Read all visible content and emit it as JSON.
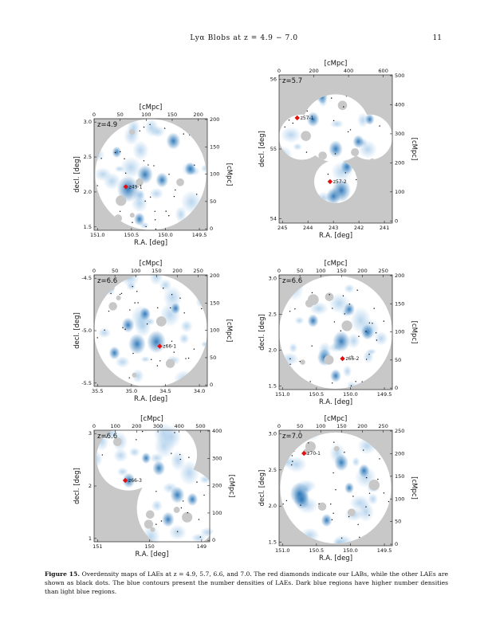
{
  "header": {
    "running_title": "Lyα Blobs at z = 4.9 − 7.0",
    "page_number": "11"
  },
  "panels": [
    {
      "z_label": "z=4.9",
      "top_axis_title": "[cMpc]",
      "top_ticks": [
        "0",
        "50",
        "100",
        "150",
        "200"
      ],
      "right_ticks": [
        "200",
        "150",
        "100",
        "50",
        "0"
      ],
      "right_axis_title": "[cMpc]",
      "left_axis_title": "decl. [deg]",
      "left_ticks": [
        "3.0",
        "2.5",
        "2.0",
        "1.5"
      ],
      "bottom_axis_title": "R.A. [deg]",
      "bottom_ticks": [
        "151.0",
        "150.5",
        "150.0",
        "149.5"
      ],
      "labs": [
        "z49-1"
      ]
    },
    {
      "z_label": "z=5.7",
      "top_axis_title": "[cMpc]",
      "top_ticks": [
        "0",
        "200",
        "400",
        "600"
      ],
      "right_ticks": [
        "500",
        "400",
        "300",
        "200",
        "100",
        "0"
      ],
      "right_axis_title": "[cMpc]",
      "left_axis_title": "decl. [deg]",
      "left_ticks": [
        "56",
        "55",
        "54"
      ],
      "bottom_axis_title": "R.A. [deg]",
      "bottom_ticks": [
        "245",
        "244",
        "243",
        "242",
        "241"
      ],
      "labs": [
        "z57-1",
        "z57-2"
      ]
    },
    {
      "z_label": "z=6.6",
      "top_axis_title": "[cMpc]",
      "top_ticks": [
        "0",
        "50",
        "100",
        "150",
        "200",
        "250"
      ],
      "right_ticks": [
        "200",
        "150",
        "100",
        "50",
        "0"
      ],
      "right_axis_title": "[cMpc]",
      "left_axis_title": "decl. [deg]",
      "left_ticks": [
        "-4.5",
        "-5.0",
        "-5.5"
      ],
      "bottom_axis_title": "R.A. [deg]",
      "bottom_ticks": [
        "35.5",
        "35.0",
        "34.5",
        "34.0"
      ],
      "labs": [
        "z66-1"
      ]
    },
    {
      "z_label": "z=6.6",
      "top_axis_title": "[cMpc]",
      "top_ticks": [
        "0",
        "50",
        "100",
        "150",
        "200",
        "250"
      ],
      "right_ticks": [
        "200",
        "150",
        "100",
        "50",
        "0"
      ],
      "right_axis_title": "[cMpc]",
      "left_axis_title": "decl. [deg]",
      "left_ticks": [
        "3.0",
        "2.5",
        "2.0",
        "1.5"
      ],
      "bottom_axis_title": "R.A. [deg]",
      "bottom_ticks": [
        "151.0",
        "150.5",
        "150.0",
        "149.5"
      ],
      "labs": [
        "z66-2"
      ]
    },
    {
      "z_label": "z=6.6",
      "top_axis_title": "[cMpc]",
      "top_ticks": [
        "0",
        "100",
        "200",
        "300",
        "400",
        "500"
      ],
      "right_ticks": [
        "400",
        "300",
        "200",
        "100",
        "0"
      ],
      "right_axis_title": "[cMpc]",
      "left_axis_title": "decl. [deg]",
      "left_ticks": [
        "3",
        "2",
        "1"
      ],
      "bottom_axis_title": "R.A. [deg]",
      "bottom_ticks": [
        "151",
        "150",
        "149"
      ],
      "labs": [
        "z66-3"
      ]
    },
    {
      "z_label": "z=7.0",
      "top_axis_title": "[cMpc]",
      "top_ticks": [
        "0",
        "50",
        "100",
        "150",
        "200",
        "250"
      ],
      "right_ticks": [
        "250",
        "200",
        "150",
        "100",
        "50",
        "0"
      ],
      "right_axis_title": "[cMpc]",
      "left_axis_title": "decl. [deg]",
      "left_ticks": [
        "3.0",
        "2.5",
        "2.0",
        "1.5"
      ],
      "bottom_axis_title": "R.A. [deg]",
      "bottom_ticks": [
        "151.0",
        "150.5",
        "150.0",
        "149.5"
      ],
      "labs": [
        "z70-1"
      ]
    }
  ],
  "caption": {
    "label": "Figure 15.",
    "text": "Overdensity maps of LAEs at z = 4.9, 5.7, 6.6, and 7.0. The red diamonds indicate our LABs, while the other LAEs are shown as black dots. The blue contours present the number densities of LAEs. Dark blue regions have higher number densities than light blue regions."
  },
  "colors": {
    "background_mask": "#c8c8c8",
    "field": "#ffffff",
    "density": "#1f6fb5",
    "lab_marker": "#e01010",
    "lae_dot": "#000000"
  }
}
